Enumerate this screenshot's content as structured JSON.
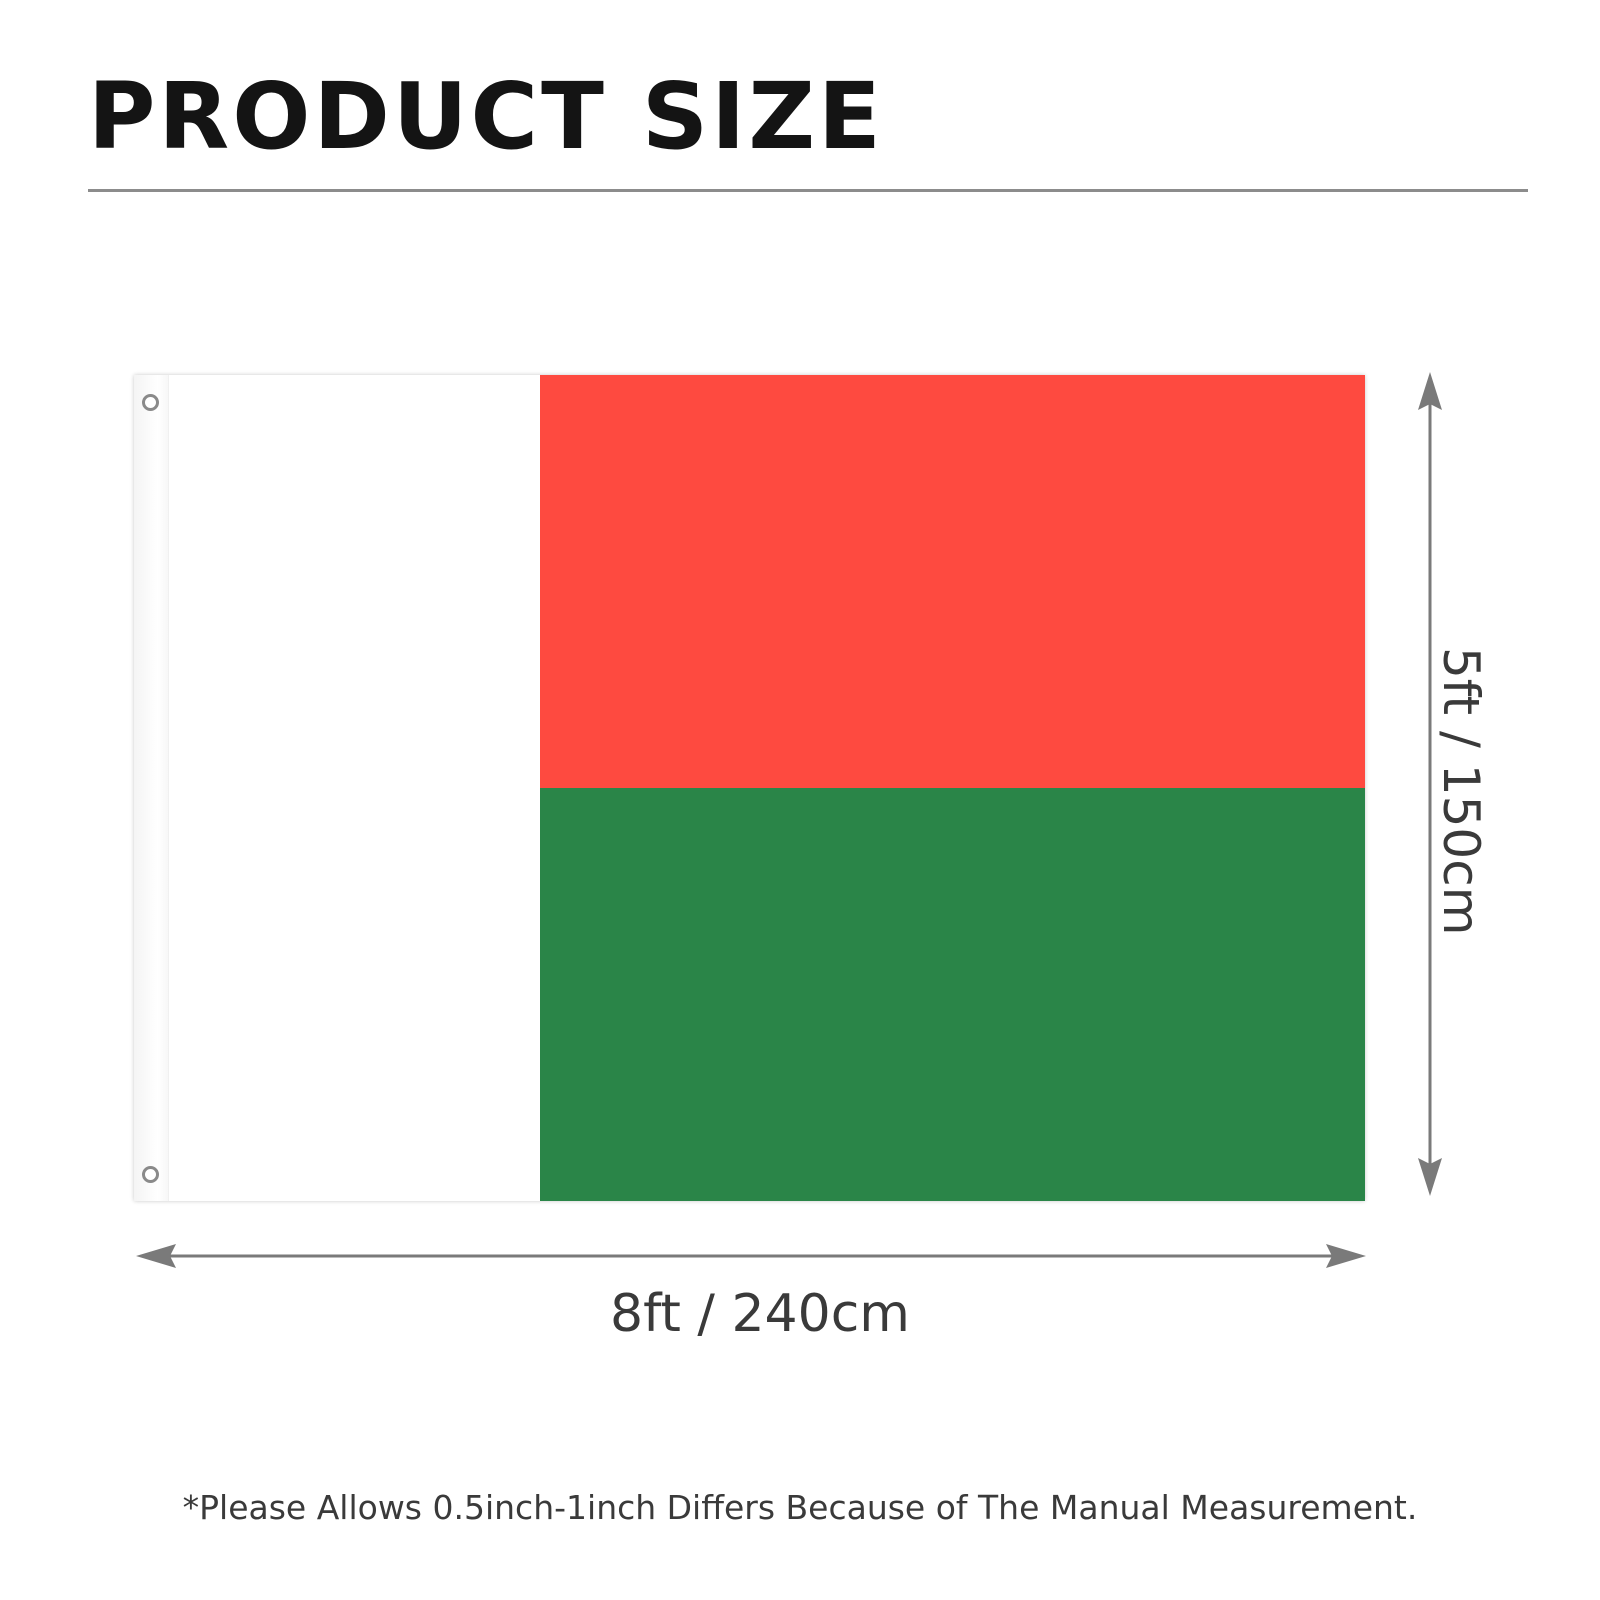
{
  "title": "PRODUCT SIZE",
  "flag": {
    "name": "Madagascar flag",
    "colors": {
      "hoist": "#ffffff",
      "top": "#fe4a40",
      "bottom": "#2a8548"
    }
  },
  "dimensions": {
    "width_label": "8ft / 240cm",
    "height_label": "5ft / 150cm"
  },
  "footnote": "*Please Allows 0.5inch-1inch Differs Because of The Manual Measurement.",
  "colors": {
    "text_dark": "#141414",
    "text_gray": "#3a3a3a",
    "divider": "#8c8c8c",
    "arrow": "#7a7a7a"
  },
  "icons": [
    "grommet-icon",
    "width-arrow-icon",
    "height-arrow-icon"
  ]
}
